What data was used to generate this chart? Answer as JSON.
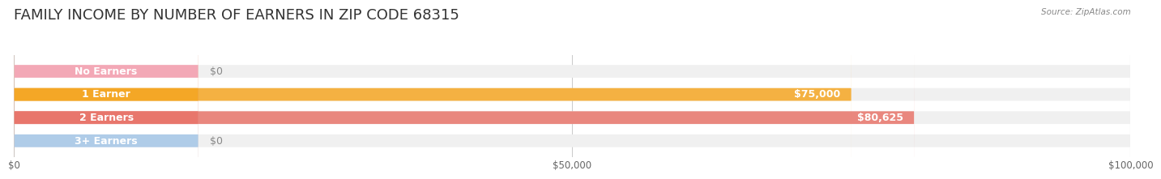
{
  "title": "FAMILY INCOME BY NUMBER OF EARNERS IN ZIP CODE 68315",
  "source": "Source: ZipAtlas.com",
  "categories": [
    "No Earners",
    "1 Earner",
    "2 Earners",
    "3+ Earners"
  ],
  "values": [
    0,
    75000,
    80625,
    0
  ],
  "bar_colors": [
    "#f4a0b0",
    "#f5a623",
    "#e8756a",
    "#a8c8e8"
  ],
  "bar_bg_color": "#f0f0f0",
  "xlim": [
    0,
    100000
  ],
  "xticks": [
    0,
    50000,
    100000
  ],
  "xtick_labels": [
    "$0",
    "$50,000",
    "$100,000"
  ],
  "value_labels": [
    "$0",
    "$75,000",
    "$80,625",
    "$0"
  ],
  "label_colors": [
    "#888888",
    "#ffffff",
    "#ffffff",
    "#888888"
  ],
  "background_color": "#ffffff",
  "title_fontsize": 13,
  "label_fontsize": 9,
  "bar_height": 0.55,
  "bar_label_inside_threshold": 5000
}
